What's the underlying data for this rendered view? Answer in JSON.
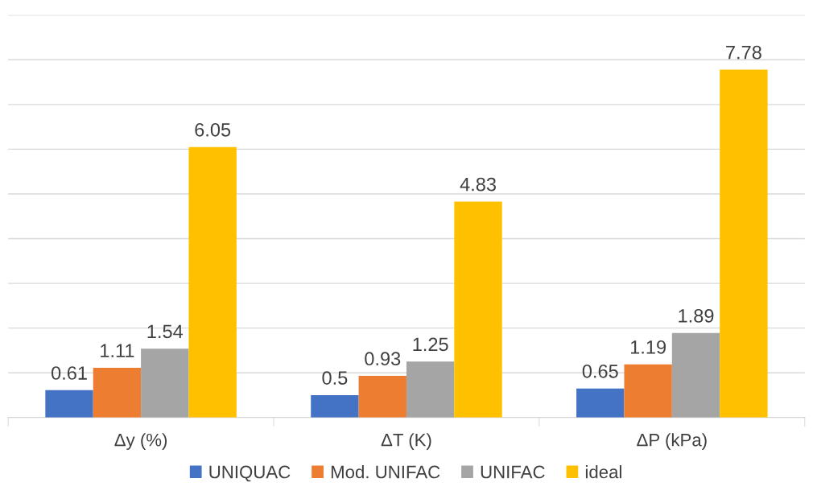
{
  "chart_data": {
    "type": "bar",
    "categories": [
      "Δy (%)",
      "ΔT (K)",
      "ΔP (kPa)"
    ],
    "series": [
      {
        "name": "UNIQUAC",
        "color": "#4472c4",
        "values": [
          0.61,
          0.5,
          0.65
        ]
      },
      {
        "name": "Mod. UNIFAC",
        "color": "#ed7d31",
        "values": [
          1.11,
          0.93,
          1.19
        ]
      },
      {
        "name": "UNIFAC",
        "color": "#a5a5a5",
        "values": [
          1.54,
          1.25,
          1.89
        ]
      },
      {
        "name": "ideal",
        "color": "#ffc000",
        "values": [
          6.05,
          4.83,
          7.78
        ]
      }
    ],
    "ylim": [
      0,
      9
    ],
    "yticks": [
      {
        "value": 0,
        "label": null
      },
      {
        "value": 1,
        "label": null
      },
      {
        "value": 2,
        "label": null
      },
      {
        "value": 3,
        "label": null
      },
      {
        "value": 4,
        "label": null
      },
      {
        "value": 5,
        "label": null
      },
      {
        "value": 6,
        "label": null
      },
      {
        "value": 7,
        "label": null
      },
      {
        "value": 8,
        "label": null
      },
      {
        "value": 9,
        "label": null
      }
    ],
    "tick_labels": "x",
    "grid": "y",
    "legend": "bottom",
    "data_labels": true
  }
}
